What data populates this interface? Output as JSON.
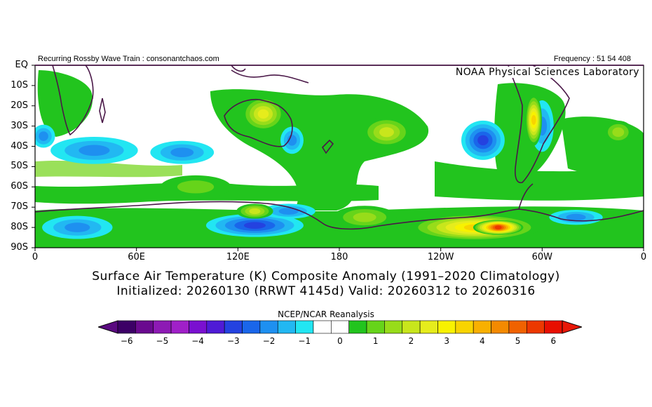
{
  "header": {
    "left": "Recurring Rossby Wave Train : consonantchaos.com",
    "right": "Frequency : 51 54 408",
    "credit": "NOAA Physical Sciences Laboratory"
  },
  "map": {
    "lat_labels": [
      "EQ",
      "10S",
      "20S",
      "30S",
      "40S",
      "50S",
      "60S",
      "70S",
      "80S",
      "90S"
    ],
    "lon_labels": [
      "0",
      "60E",
      "120E",
      "180",
      "120W",
      "60W",
      "0"
    ],
    "anomalies": [
      {
        "lon": 25,
        "lat": -80,
        "rx": 20,
        "ry": 5,
        "v": -1.5
      },
      {
        "lon": 130,
        "lat": -79,
        "rx": 28,
        "ry": 5,
        "v": -2.5
      },
      {
        "lon": 150,
        "lat": -72,
        "rx": 15,
        "ry": 3,
        "v": -1.5
      },
      {
        "lon": 35,
        "lat": -42,
        "rx": 25,
        "ry": 6,
        "v": -1.5
      },
      {
        "lon": 87,
        "lat": -43,
        "rx": 18,
        "ry": 5,
        "v": -1.5
      },
      {
        "lon": 152,
        "lat": -37,
        "rx": 6,
        "ry": 6,
        "v": -1.5
      },
      {
        "lon": 265,
        "lat": -37,
        "rx": 12,
        "ry": 9,
        "v": -2.5
      },
      {
        "lon": 300,
        "lat": -30,
        "rx": 6,
        "ry": 12,
        "v": -1.5
      },
      {
        "lon": 320,
        "lat": -75,
        "rx": 15,
        "ry": 3,
        "v": -1.5
      },
      {
        "lon": 345,
        "lat": -33,
        "rx": 8,
        "ry": 5,
        "v": 1.5
      },
      {
        "lon": 5,
        "lat": -35,
        "rx": 6,
        "ry": 5,
        "v": -1.5
      },
      {
        "lon": 135,
        "lat": -24,
        "rx": 12,
        "ry": 8,
        "v": 2.5
      },
      {
        "lon": 208,
        "lat": -33,
        "rx": 14,
        "ry": 7,
        "v": 2
      },
      {
        "lon": 260,
        "lat": -80,
        "rx": 38,
        "ry": 6,
        "v": 3.5
      },
      {
        "lon": 274,
        "lat": -80,
        "rx": 14,
        "ry": 3,
        "v": 5.5
      },
      {
        "lon": 295,
        "lat": -27,
        "rx": 4,
        "ry": 12,
        "v": 3.5
      },
      {
        "lon": 130,
        "lat": -72,
        "rx": 10,
        "ry": 3,
        "v": 2
      },
      {
        "lon": 195,
        "lat": -75,
        "rx": 18,
        "ry": 5,
        "v": 1.5
      },
      {
        "lon": 95,
        "lat": -60,
        "rx": 20,
        "ry": 5,
        "v": 1
      }
    ]
  },
  "title": {
    "line1": "Surface Air Temperature (K) Composite Anomaly (1991–2020 Climatology)",
    "line2": "Initialized: 20260130 (RRWT 4145d) Valid: 20260312 to 20260316"
  },
  "colorbar": {
    "source": "NCEP/NCAR Reanalysis",
    "labels": [
      "−6",
      "−5",
      "−4",
      "−3",
      "−2",
      "−1",
      "0",
      "1",
      "2",
      "3",
      "4",
      "5",
      "6"
    ],
    "colors": [
      "#3c0066",
      "#6a0a8f",
      "#8d1ab4",
      "#a020c8",
      "#7a10d0",
      "#4f1bd6",
      "#2442e0",
      "#1a66ea",
      "#1e90f0",
      "#22b8f2",
      "#22e6f2",
      "#ffffff",
      "#ffffff",
      "#22c41e",
      "#66d41a",
      "#98dc1a",
      "#c8e61c",
      "#e6ec1c",
      "#f8f200",
      "#f8d400",
      "#f8b000",
      "#f48a00",
      "#f06200",
      "#ec3800",
      "#e80e00"
    ],
    "under_color": "#5a0a80",
    "over_color": "#e81808"
  }
}
